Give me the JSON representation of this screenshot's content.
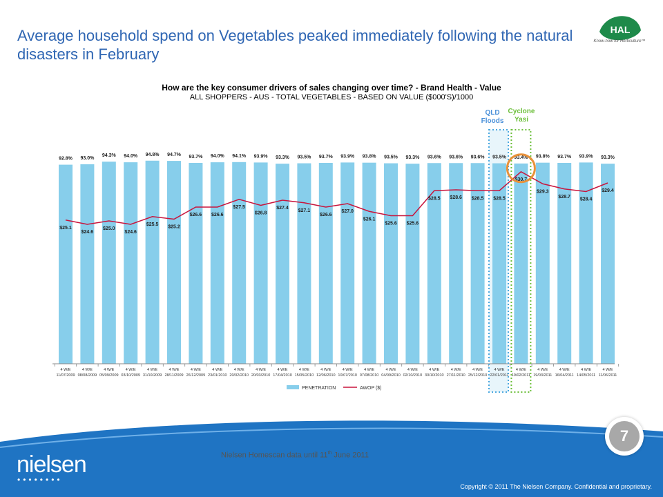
{
  "slide": {
    "title": "Average household spend on Vegetables peaked immediately following the natural disasters in February",
    "logo_text": "HAL",
    "logo_tagline": "Know-how for Horticulture™",
    "page_number": "7",
    "source_note_prefix": "Nielsen Homescan data until 11",
    "source_note_sup": "th",
    "source_note_suffix": " June 2011",
    "nielsen_logo": "nielsen",
    "copyright": "Copyright © 2011 The Nielsen Company. Confidential and proprietary.",
    "colors": {
      "title": "#2f66b3",
      "bar": "#87ceeb",
      "line": "#c8143c",
      "footer": "#1f74c3",
      "qld_box": "#4aa8e0",
      "yasi_box": "#6cbf3a",
      "highlight_circle": "#e8913a"
    }
  },
  "callouts": {
    "qld": "QLD Floods",
    "yasi": "Cyclone Yasi"
  },
  "chart_data": {
    "type": "bar",
    "title": "How are the key consumer drivers of sales changing over time? - Brand Health - Value",
    "subtitle": "ALL SHOPPERS - AUS - TOTAL VEGETABLES - BASED ON VALUE ($000'S)/1000",
    "categories": [
      "4 W/E 11/07/2009",
      "4 W/E 08/08/2009",
      "4 W/E 05/09/2009",
      "4 W/E 03/10/2009",
      "4 W/E 31/10/2009",
      "4 W/E 28/11/2009",
      "4 W/E 26/12/2009",
      "4 W/E 23/01/2010",
      "4 W/E 20/02/2010",
      "4 W/E 20/03/2010",
      "4 W/E 17/04/2010",
      "4 W/E 15/05/2010",
      "4 W/E 12/06/2010",
      "4 W/E 10/07/2010",
      "4 W/E 07/08/2010",
      "4 W/E 04/09/2010",
      "4 W/E 02/10/2010",
      "4 W/E 30/10/2010",
      "4 W/E 27/11/2010",
      "4 W/E 25/12/2010",
      "4 W/E 22/01/2011",
      "4 W/E 19/02/2011",
      "4 W/E 19/03/2011",
      "4 W/E 16/04/2011",
      "4 W/E 14/05/2011",
      "4 W/E 11/06/2011"
    ],
    "series": [
      {
        "name": "PENETRATION",
        "kind": "bar",
        "values": [
          92.8,
          93.0,
          94.3,
          94.0,
          94.8,
          94.7,
          93.7,
          94.0,
          94.1,
          93.9,
          93.3,
          93.5,
          93.7,
          93.9,
          93.8,
          93.5,
          93.3,
          93.6,
          93.6,
          93.6,
          93.5,
          93.4,
          93.8,
          93.7,
          93.9,
          93.3
        ],
        "labels": [
          "92.8%",
          "93.0%",
          "94.3%",
          "94.0%",
          "94.8%",
          "94.7%",
          "93.7%",
          "94.0%",
          "94.1%",
          "93.9%",
          "93.3%",
          "93.5%",
          "93.7%",
          "93.9%",
          "93.8%",
          "93.5%",
          "93.3%",
          "93.6%",
          "93.6%",
          "93.6%",
          "93.5%",
          "93.4%",
          "93.8%",
          "93.7%",
          "93.9%",
          "93.3%"
        ]
      },
      {
        "name": "AWOP ($)",
        "kind": "line",
        "values": [
          25.1,
          24.6,
          25.0,
          24.6,
          25.5,
          25.2,
          26.6,
          26.6,
          27.5,
          26.8,
          27.4,
          27.1,
          26.6,
          27.0,
          26.1,
          25.6,
          25.6,
          28.5,
          28.6,
          28.5,
          28.5,
          30.7,
          29.3,
          28.7,
          28.4,
          29.4
        ],
        "labels": [
          "$25.1",
          "$24.6",
          "$25.0",
          "$24.6",
          "$25.5",
          "$25.2",
          "$26.6",
          "$26.6",
          "$27.5",
          "$26.8",
          "$27.4",
          "$27.1",
          "$26.6",
          "$27.0",
          "$26.1",
          "$25.6",
          "$25.6",
          "$28.5",
          "$28.6",
          "$28.5",
          "$28.5",
          "$30.7",
          "$29.3",
          "$28.7",
          "$28.4",
          "$29.4"
        ]
      }
    ],
    "legend_position": "bottom",
    "grid": false,
    "highlight_indices": {
      "qld_floods": 20,
      "cyclone_yasi": 21
    }
  }
}
